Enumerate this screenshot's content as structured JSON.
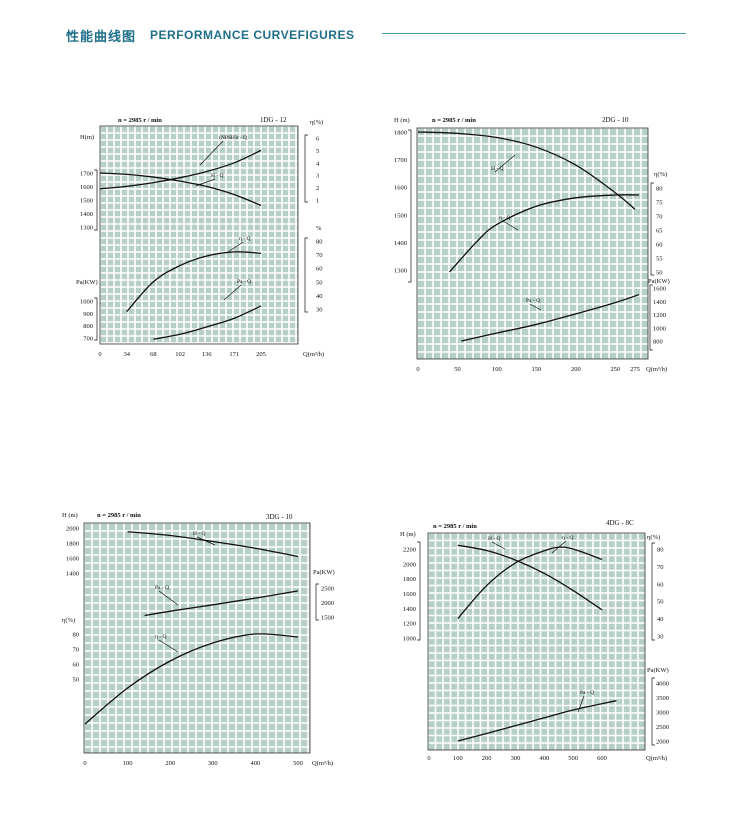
{
  "header": {
    "title_cn": "性能曲线图",
    "title_en": "PERFORMANCE CURVEFIGURES"
  },
  "chart_data": [
    {
      "type": "line",
      "model": "1DG - 12",
      "speed": "n = 2985 r / min",
      "xlabel": "Q(m³/h)",
      "x_ticks": [
        "0",
        "34",
        "68",
        "102",
        "136",
        "171",
        "205"
      ],
      "h_label": "H(m)",
      "h_ticks": [
        "1700",
        "1600",
        "1500",
        "1400",
        "1300"
      ],
      "pa_label": "Pa(KW)",
      "pa_ticks": [
        "1000",
        "900",
        "800",
        "700"
      ],
      "npsh_label": "η(%)",
      "npsh_ticks": [
        "6",
        "5",
        "4",
        "3",
        "2",
        "1"
      ],
      "eff_label": "%",
      "eff_ticks": [
        "80",
        "70",
        "60",
        "50",
        "40",
        "30"
      ],
      "curve_labels": {
        "npsh": "(NPSH)r - Q",
        "h": "H - Q",
        "eff": "η - Q",
        "pa": "Pa - Q"
      },
      "series": [
        {
          "name": "H - Q",
          "x": [
            0,
            34,
            68,
            102,
            136,
            171,
            205
          ],
          "y": [
            1700,
            1690,
            1670,
            1640,
            1600,
            1540,
            1460
          ]
        },
        {
          "name": "(NPSH)r - Q",
          "x": [
            0,
            34,
            68,
            102,
            136,
            171,
            205
          ],
          "y": [
            1.9,
            2.1,
            2.4,
            2.8,
            3.3,
            4.0,
            5.0
          ]
        },
        {
          "name": "η - Q",
          "x": [
            34,
            68,
            102,
            136,
            171,
            205
          ],
          "y": [
            28,
            50,
            62,
            69,
            72,
            71
          ]
        },
        {
          "name": "Pa - Q",
          "x": [
            68,
            102,
            136,
            171,
            205
          ],
          "y": [
            690,
            730,
            790,
            860,
            960
          ]
        }
      ]
    },
    {
      "type": "line",
      "model": "2DG - 10",
      "speed": "n = 2985 r / min",
      "xlabel": "Q(m³/h)",
      "x_ticks": [
        "0",
        "50",
        "100",
        "150",
        "200",
        "250",
        "275"
      ],
      "h_label": "H (m)",
      "h_ticks": [
        "1800",
        "1700",
        "1600",
        "1500",
        "1400",
        "1300"
      ],
      "eff_label": "η(%)",
      "eff_ticks": [
        "80",
        "75",
        "70",
        "65",
        "60",
        "55",
        "50"
      ],
      "pa_label": "Pa(KW)",
      "pa_ticks": [
        "1600",
        "1400",
        "1200",
        "1000",
        "800"
      ],
      "curve_labels": {
        "h": "H - Q",
        "eff": "η - Q",
        "pa": "Pa - Q"
      },
      "series": [
        {
          "name": "H - Q",
          "x": [
            0,
            50,
            100,
            150,
            200,
            250,
            275
          ],
          "y": [
            1800,
            1795,
            1780,
            1745,
            1680,
            1580,
            1520
          ]
        },
        {
          "name": "η - Q",
          "x": [
            40,
            75,
            100,
            150,
            200,
            250,
            280
          ],
          "y": [
            50,
            61,
            67,
            73.5,
            76.5,
            77.5,
            77.5
          ]
        },
        {
          "name": "Pa - Q",
          "x": [
            55,
            100,
            150,
            200,
            250,
            280
          ],
          "y": [
            800,
            920,
            1050,
            1210,
            1380,
            1500
          ]
        }
      ]
    },
    {
      "type": "line",
      "model": "3DG - 10",
      "speed": "n = 2985 r / min",
      "xlabel": "Q(m³/h)",
      "x_ticks": [
        "0",
        "100",
        "200",
        "300",
        "400",
        "500"
      ],
      "h_label": "H (m)",
      "h_ticks": [
        "2000",
        "1800",
        "1600",
        "1400"
      ],
      "eff_label": "η(%)",
      "eff_ticks": [
        "80",
        "70",
        "60",
        "50"
      ],
      "pa_label": "Pa(KW)",
      "pa_ticks": [
        "2500",
        "2000",
        "1500"
      ],
      "curve_labels": {
        "h": "H - Q",
        "eff": "η - Q",
        "pa": "Pa - Q"
      },
      "series": [
        {
          "name": "H - Q",
          "x": [
            100,
            200,
            300,
            400,
            500
          ],
          "y": [
            1950,
            1900,
            1820,
            1730,
            1620
          ]
        },
        {
          "name": "Pa - Q",
          "x": [
            140,
            200,
            300,
            400,
            500
          ],
          "y": [
            1550,
            1700,
            1920,
            2150,
            2400
          ]
        },
        {
          "name": "η - Q",
          "x": [
            0,
            100,
            200,
            300,
            400,
            500
          ],
          "y": [
            20,
            44,
            62,
            74,
            80,
            78
          ]
        }
      ]
    },
    {
      "type": "line",
      "model": "4DG - 8C",
      "speed": "n = 2985 r / min",
      "xlabel": "Q(m³/h)",
      "x_ticks": [
        "0",
        "100",
        "200",
        "300",
        "400",
        "500",
        "600"
      ],
      "h_label": "H (m)",
      "h_ticks": [
        "2200",
        "2000",
        "1800",
        "1600",
        "1400",
        "1200",
        "1000"
      ],
      "eff_label": "η(%)",
      "eff_ticks": [
        "80",
        "70",
        "60",
        "50",
        "40",
        "30"
      ],
      "pa_label": "Pa(KW)",
      "pa_ticks": [
        "4000",
        "3500",
        "3000",
        "2500",
        "2000"
      ],
      "curve_labels": {
        "h": "H - Q",
        "eff": "η - Q",
        "pa": "Pa - Q"
      },
      "series": [
        {
          "name": "H - Q",
          "x": [
            100,
            200,
            300,
            400,
            500,
            600
          ],
          "y": [
            2250,
            2180,
            2050,
            1870,
            1640,
            1380
          ]
        },
        {
          "name": "η - Q",
          "x": [
            100,
            200,
            300,
            400,
            450,
            500,
            600
          ],
          "y": [
            40,
            59,
            72,
            79,
            81,
            80,
            74
          ]
        },
        {
          "name": "Pa - Q",
          "x": [
            100,
            200,
            300,
            400,
            500,
            650
          ],
          "y": [
            2000,
            2260,
            2530,
            2800,
            3070,
            3390
          ]
        }
      ]
    }
  ]
}
